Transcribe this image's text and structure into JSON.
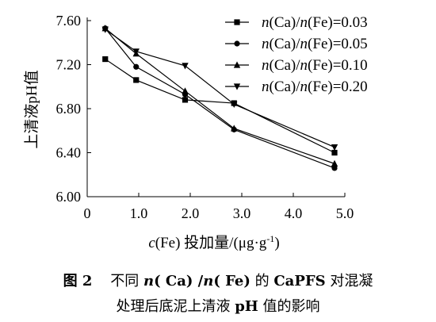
{
  "chart_data": {
    "type": "line",
    "x": [
      0.35,
      0.95,
      1.9,
      2.85,
      4.8
    ],
    "series": [
      {
        "name": "n(Ca)/n(Fe)=0.03",
        "marker": "square",
        "values": [
          7.25,
          7.06,
          6.88,
          6.85,
          6.4
        ]
      },
      {
        "name": "n(Ca)/n(Fe)=0.05",
        "marker": "circle",
        "values": [
          7.53,
          7.18,
          6.93,
          6.61,
          6.26
        ]
      },
      {
        "name": "n(Ca)/n(Fe)=0.10",
        "marker": "triangle-up",
        "values": [
          7.53,
          7.3,
          6.96,
          6.62,
          6.3
        ]
      },
      {
        "name": "n(Ca)/n(Fe)=0.20",
        "marker": "triangle-down",
        "values": [
          7.52,
          7.32,
          7.19,
          6.84,
          6.45
        ]
      }
    ],
    "legend_parts": [
      [
        "n",
        "(Ca)/",
        "n",
        "(Fe)=0.03"
      ],
      [
        "n",
        "(Ca)/",
        "n",
        "(Fe)=0.05"
      ],
      [
        "n",
        "(Ca)/",
        "n",
        "(Fe)=0.10"
      ],
      [
        "n",
        "(Ca)/",
        "n",
        "(Fe)=0.20"
      ]
    ],
    "xlim": [
      0,
      5.0
    ],
    "ylim": [
      6.0,
      7.6
    ],
    "xticks": [
      0,
      1.0,
      2.0,
      3.0,
      4.0,
      5.0
    ],
    "xtick_labels": [
      "0",
      "1.0",
      "2.0",
      "3.0",
      "4.0",
      "5.0"
    ],
    "yticks": [
      6.0,
      6.4,
      6.8,
      7.2,
      7.6
    ],
    "ytick_labels": [
      "6.00",
      "6.40",
      "6.80",
      "7.20",
      "7.60"
    ],
    "xlabel_parts": [
      "c",
      "(Fe) 投加量/(μg·g",
      "-1",
      ")"
    ],
    "ylabel": "上清液pH值",
    "grid": false,
    "legend_position": "top-right"
  },
  "caption": {
    "line1_prefix": "图 2",
    "line1_a": "不同 ",
    "line1_b": "n",
    "line1_c": "( Ca) /",
    "line1_d": "n",
    "line1_e": "( Fe)",
    "line1_f": " 的 ",
    "line1_g": "CaPFS",
    "line1_h": " 对混凝",
    "line2_a": "处理后底泥上清液 ",
    "line2_b": "pH",
    "line2_c": " 值的影响"
  }
}
